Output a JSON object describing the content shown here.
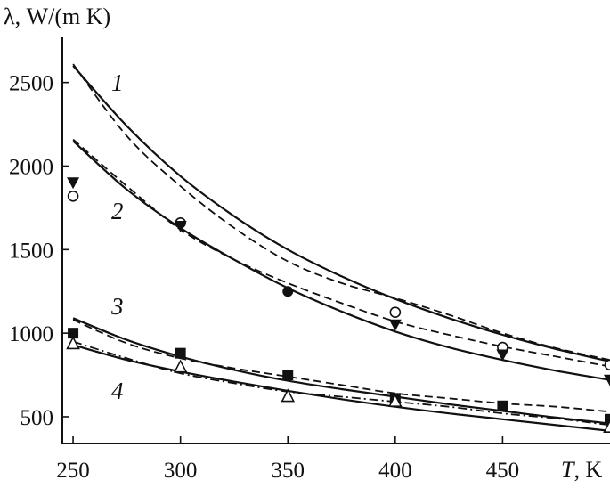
{
  "chart_data": {
    "type": "line",
    "ylabel": "λ, W/(m K)",
    "xlabel_symbol": "T",
    "xlabel_unit": ", K",
    "xlim": [
      245,
      500
    ],
    "ylim": [
      340,
      2770
    ],
    "xticks": [
      250,
      300,
      350,
      400,
      450
    ],
    "yticks": [
      500,
      1000,
      1500,
      2000,
      2500
    ],
    "grid": false,
    "curve_numbers": [
      "1",
      "2",
      "3",
      "4"
    ],
    "solid_curves": [
      {
        "curve": "1",
        "x": [
          250,
          275,
          300,
          325,
          350,
          375,
          400,
          425,
          450,
          475,
          500
        ],
        "y": [
          2600,
          2240,
          1940,
          1700,
          1500,
          1340,
          1205,
          1090,
          990,
          905,
          830
        ]
      },
      {
        "curve": "2",
        "x": [
          250,
          275,
          300,
          325,
          350,
          375,
          400,
          425,
          450,
          475,
          500
        ],
        "y": [
          2150,
          1860,
          1630,
          1440,
          1270,
          1130,
          1010,
          915,
          840,
          775,
          720
        ]
      },
      {
        "curve": "3",
        "x": [
          250,
          275,
          300,
          325,
          350,
          375,
          400,
          425,
          450,
          475,
          500
        ],
        "y": [
          1090,
          960,
          860,
          780,
          715,
          665,
          620,
          575,
          535,
          495,
          460
        ]
      },
      {
        "curve": "4",
        "x": [
          250,
          275,
          300,
          325,
          350,
          375,
          400,
          425,
          450,
          475,
          500
        ],
        "y": [
          930,
          840,
          770,
          710,
          655,
          605,
          560,
          520,
          485,
          450,
          415
        ]
      }
    ],
    "dashed_curves": [
      {
        "curve": "1",
        "x": [
          250,
          275,
          300,
          325,
          350,
          375,
          400,
          425,
          450,
          475,
          500
        ],
        "y": [
          2610,
          2180,
          1880,
          1630,
          1430,
          1300,
          1210,
          1110,
          1000,
          910,
          840
        ]
      },
      {
        "curve": "2",
        "x": [
          250,
          275,
          300,
          325,
          350,
          375,
          400,
          425,
          450,
          475,
          500
        ],
        "y": [
          2160,
          1880,
          1620,
          1440,
          1300,
          1180,
          1070,
          990,
          920,
          860,
          800
        ]
      },
      {
        "curve": "3",
        "x": [
          250,
          275,
          300,
          325,
          350,
          375,
          400,
          425,
          450,
          475,
          500
        ],
        "y": [
          1080,
          940,
          850,
          790,
          740,
          690,
          640,
          610,
          580,
          560,
          530
        ]
      }
    ],
    "dashdot_curves": [
      {
        "curve": "4",
        "x": [
          250,
          275,
          300,
          325,
          350,
          375,
          400,
          425,
          450,
          475,
          500
        ],
        "y": [
          950,
          850,
          760,
          700,
          650,
          620,
          590,
          560,
          520,
          490,
          450
        ]
      }
    ],
    "markers": [
      {
        "marker": "open-circle",
        "x": [
          250,
          300,
          400,
          450,
          500
        ],
        "y": [
          1820,
          1660,
          1125,
          915,
          810
        ]
      },
      {
        "marker": "filled-triangle-down",
        "x": [
          250,
          300,
          400,
          450,
          500
        ],
        "y": [
          1900,
          1640,
          1050,
          870,
          720
        ]
      },
      {
        "marker": "filled-circle",
        "x": [
          350
        ],
        "y": [
          1250
        ]
      },
      {
        "marker": "filled-square",
        "x": [
          250,
          300,
          350,
          400,
          450,
          500
        ],
        "y": [
          1000,
          880,
          750,
          610,
          565,
          485
        ]
      },
      {
        "marker": "open-triangle-up",
        "x": [
          250,
          300,
          350,
          400,
          500
        ],
        "y": [
          940,
          800,
          625,
          595,
          440
        ]
      }
    ]
  }
}
